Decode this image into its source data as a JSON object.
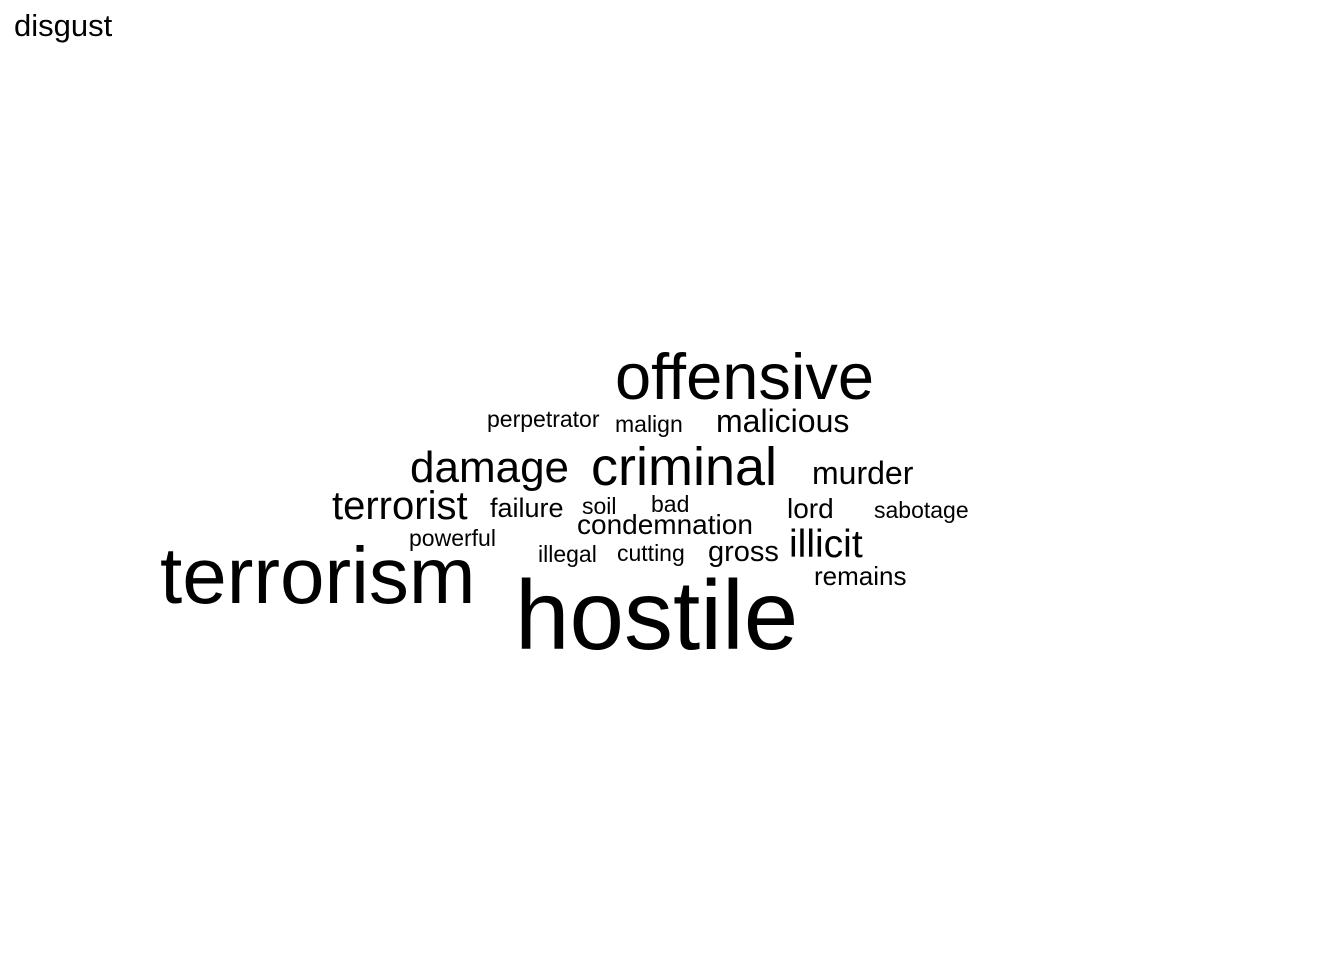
{
  "title": "disgust",
  "words": [
    {
      "text": "hostile"
    },
    {
      "text": "terrorism"
    },
    {
      "text": "offensive"
    },
    {
      "text": "criminal"
    },
    {
      "text": "damage"
    },
    {
      "text": "terrorist"
    },
    {
      "text": "malicious"
    },
    {
      "text": "murder"
    },
    {
      "text": "illicit"
    },
    {
      "text": "condemnation"
    },
    {
      "text": "failure"
    },
    {
      "text": "lord"
    },
    {
      "text": "gross"
    },
    {
      "text": "remains"
    },
    {
      "text": "perpetrator"
    },
    {
      "text": "malign"
    },
    {
      "text": "soil"
    },
    {
      "text": "bad"
    },
    {
      "text": "sabotage"
    },
    {
      "text": "powerful"
    },
    {
      "text": "illegal"
    },
    {
      "text": "cutting"
    }
  ]
}
